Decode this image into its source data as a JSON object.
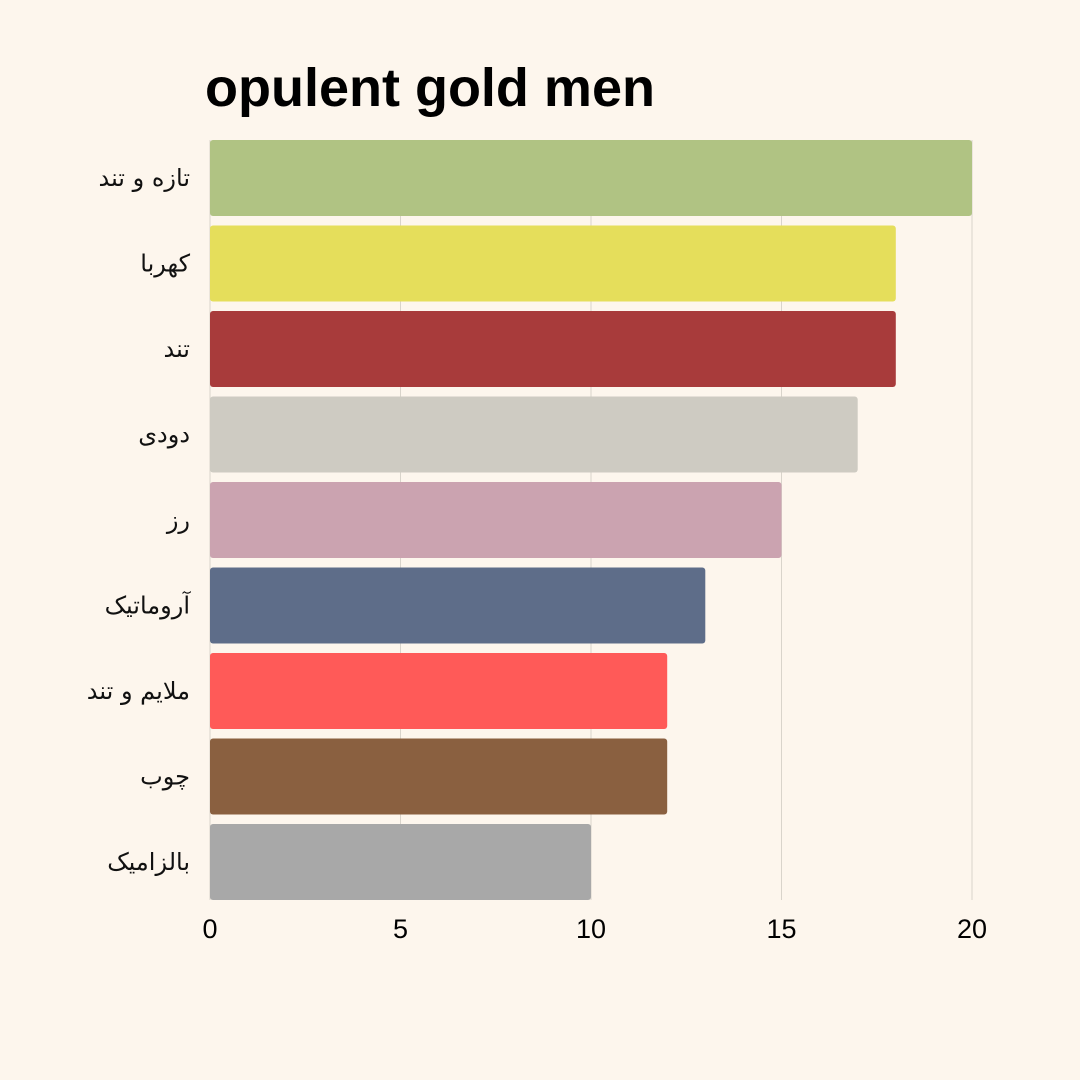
{
  "chart_data": {
    "type": "bar",
    "orientation": "horizontal",
    "title": "opulent gold men",
    "xlabel": "",
    "ylabel": "",
    "xlim": [
      0,
      20
    ],
    "x_ticks": [
      "0",
      "5",
      "10",
      "15",
      "20"
    ],
    "grid": true,
    "legend": "none",
    "categories": [
      "تازه و تند",
      "کهربا",
      "تند",
      "دودی",
      "رز",
      "آروماتیک",
      "ملایم و تند",
      "چوب",
      "بالزامیک"
    ],
    "values": [
      20,
      18,
      18,
      17,
      15,
      13,
      12,
      12,
      10
    ],
    "colors": [
      "#b0c383",
      "#e5de5b",
      "#a83b3b",
      "#cecbc2",
      "#cba3b0",
      "#5e6d89",
      "#ff5a58",
      "#8a6040",
      "#a8a8a8"
    ]
  },
  "theme": {
    "background": "#fdf6ed",
    "grid_color": "#d9d4cb"
  }
}
